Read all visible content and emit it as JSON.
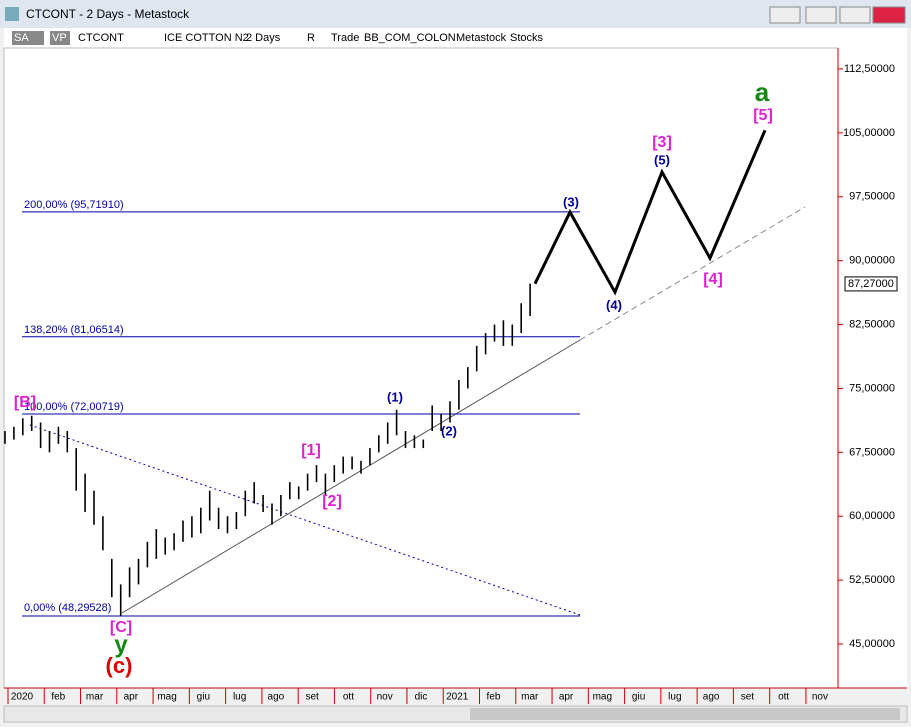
{
  "window": {
    "title": "CTCONT - 2 Days - Metastock",
    "toolbar": [
      "SA",
      "VP",
      "CTCONT",
      "ICE COTTON N2",
      "2 Days",
      "R",
      "Trade",
      "BB_COM_COLON",
      "Metastock",
      "Stocks"
    ]
  },
  "chart_data": {
    "type": "ohlc",
    "highs": [
      70,
      70.5,
      71.5,
      71.8,
      71,
      70,
      70.5,
      70,
      68,
      65,
      63,
      60,
      55,
      52,
      54,
      55,
      57,
      58.5,
      57.5,
      58,
      59.5,
      60,
      61,
      63,
      61,
      60,
      60.5,
      63,
      64,
      62.5,
      61.5,
      62.5,
      64,
      63.5,
      65,
      66,
      65,
      66,
      67,
      67,
      66.5,
      68,
      69.5,
      71,
      72.5,
      70,
      69.5,
      69,
      73,
      72,
      73.5,
      76,
      77.5,
      80,
      81.5,
      82.5,
      83,
      82.5,
      85,
      87.3
    ],
    "lows": [
      68.5,
      69,
      69.5,
      70,
      68,
      67.5,
      68.5,
      67.5,
      63,
      60.5,
      59,
      56,
      50.5,
      48.3,
      50.5,
      52,
      54,
      55,
      55.5,
      56,
      57,
      57.5,
      58,
      59.5,
      58.5,
      58,
      58.5,
      60,
      61.5,
      60.5,
      59,
      60,
      62,
      62,
      63,
      64,
      62.5,
      64,
      65,
      65.5,
      65,
      66,
      67.5,
      68.5,
      69.5,
      68,
      68,
      68,
      70,
      70,
      71,
      72.5,
      75,
      77,
      79,
      80.5,
      80,
      80,
      81.5,
      83.5
    ],
    "color": "#000000",
    "ylim": [
      39.84,
      114.96
    ],
    "yticks": [
      {
        "value": 45,
        "label": "45,00000"
      },
      {
        "value": 52.5,
        "label": "52,50000"
      },
      {
        "value": 60,
        "label": "60,00000"
      },
      {
        "value": 67.5,
        "label": "67,50000"
      },
      {
        "value": 75,
        "label": "75,00000"
      },
      {
        "value": 82.5,
        "label": "82,50000"
      },
      {
        "value": 90,
        "label": "90,00000"
      },
      {
        "value": 97.5,
        "label": "97,50000"
      },
      {
        "value": 105,
        "label": "105,00000"
      },
      {
        "value": 112.5,
        "label": "112,50000"
      }
    ],
    "x_labels": [
      "2020",
      "feb",
      "mar",
      "apr",
      "mag",
      "giu",
      "lug",
      "ago",
      "set",
      "ott",
      "nov",
      "dic",
      "2021",
      "feb",
      "mar",
      "apr",
      "mag",
      "giu",
      "lug",
      "ago",
      "set",
      "ott",
      "nov"
    ],
    "fib_levels": [
      {
        "value": 95.7191,
        "label": "200,00% (95,71910)"
      },
      {
        "value": 81.06514,
        "label": "138,20% (81,06514)"
      },
      {
        "value": 72.00719,
        "label": "100,00% (72,00719)"
      },
      {
        "value": 48.29528,
        "label": "0,00% (48,29528)"
      }
    ],
    "last_price": {
      "value": 87.27,
      "label": "87,27000"
    },
    "projection": [
      87.3,
      95.7,
      86.3,
      100.4,
      90.3,
      105.3
    ],
    "wave_labels": [
      "[B]",
      "(1)",
      "(2)",
      "[1]",
      "[2]",
      "(3)",
      "(4)",
      "[3]",
      "(5)",
      "[4]",
      "[5]",
      "a",
      "[C]",
      "y",
      "(c)"
    ]
  }
}
